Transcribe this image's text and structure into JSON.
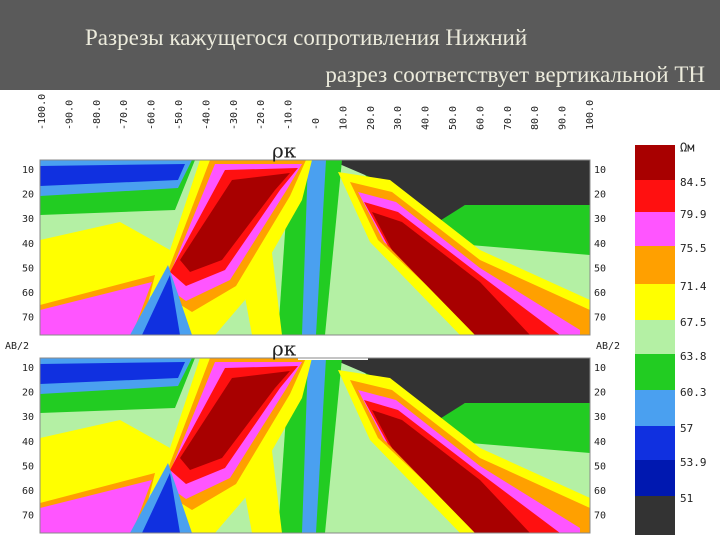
{
  "header": {
    "title_lines": [
      "Разрезы кажущегося  сопротивления Нижний",
      "разрез  соответствует  вертикальной ТН"
    ]
  },
  "figure": {
    "x_labels": [
      "-100.0",
      "-90.0",
      "-80.0",
      "-70.0",
      "-60.0",
      "-50.0",
      "-40.0",
      "-30.0",
      "-20.0",
      "-10.0",
      "-0",
      "10.0",
      "20.0",
      "30.0",
      "40.0",
      "50.0",
      "60.0",
      "70.0",
      "80.0",
      "90.0",
      "100.0"
    ],
    "panel_label": "ρк",
    "depth_axis_label": "AB/2",
    "depth_labels": [
      "10",
      "20",
      "30",
      "40",
      "50",
      "60",
      "70"
    ],
    "legend": {
      "unit": "Ωм",
      "labels": [
        "84.5",
        "79.9",
        "75.5",
        "71.4",
        "67.5",
        "63.8",
        "60.3",
        "57",
        "53.9",
        "51"
      ]
    }
  }
}
